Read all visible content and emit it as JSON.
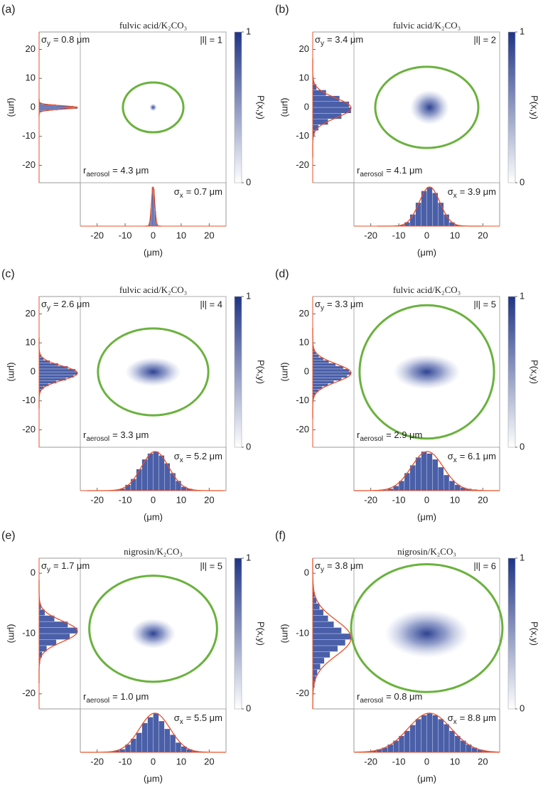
{
  "chart_data": [
    {
      "type": "heatmap",
      "panel_label": "(a)",
      "title": "fulvic acid/K₂CO₃",
      "sigma_y": {
        "symbol": "σ",
        "subscript": "y",
        "text": "= 0.8 μm"
      },
      "order": "|l| = 1",
      "r_aerosol": {
        "symbol": "r",
        "subscript": "aerosol",
        "text": "= 4.3 μm"
      },
      "sigma_x": {
        "symbol": "σ",
        "subscript": "x",
        "text": "= 0.7 μm"
      },
      "xlabel": "(μm)",
      "ylabel": "(μm)",
      "xlim": [
        -26,
        26
      ],
      "xticks": [
        -20,
        -10,
        0,
        10,
        20
      ],
      "ylim": [
        -26,
        26
      ],
      "yticks": [
        -20,
        -10,
        0,
        10,
        20
      ],
      "colorbar": {
        "label": "P(x,y)",
        "lim": [
          0,
          1
        ],
        "ticks": [
          0,
          1
        ]
      },
      "x_histogram": {
        "bins": [
          -2,
          -1.5,
          -1,
          -0.5,
          0,
          0.5,
          1,
          1.5,
          2
        ],
        "counts": [
          0.02,
          0.1,
          0.45,
          1,
          0.95,
          0.4,
          0.1,
          0.02
        ]
      },
      "y_histogram": {
        "bins": [
          -2,
          -1.5,
          -1,
          -0.5,
          0,
          0.5,
          1,
          1.5,
          2
        ],
        "counts": [
          0.02,
          0.12,
          0.5,
          1,
          0.9,
          0.45,
          0.1,
          0.02
        ]
      },
      "bar_color": "#4a5fa8",
      "fit_color": "#e8502a",
      "ellipse_color": "#6ab23e"
    },
    {
      "type": "heatmap",
      "panel_label": "(b)",
      "title": "fulvic acid/K₂CO₃",
      "sigma_y": {
        "symbol": "σ",
        "subscript": "y",
        "text": "= 3.4 μm"
      },
      "order": "|l| = 2",
      "r_aerosol": {
        "symbol": "r",
        "subscript": "aerosol",
        "text": "= 4.1 μm"
      },
      "sigma_x": {
        "symbol": "σ",
        "subscript": "x",
        "text": "= 3.9 μm"
      },
      "xlabel": "(μm)",
      "ylabel": "(μm)",
      "xlim": [
        -26,
        26
      ],
      "xticks": [
        -20,
        -10,
        0,
        10,
        20
      ],
      "ylim": [
        -26,
        26
      ],
      "yticks": [
        -20,
        -10,
        0,
        10,
        20
      ],
      "colorbar": {
        "label": "P(x,y)",
        "lim": [
          0,
          1
        ],
        "ticks": [
          0,
          1
        ]
      },
      "x_histogram": {
        "bins": [
          -10,
          -8,
          -6,
          -4,
          -2,
          0,
          2,
          4,
          6,
          8,
          10,
          12
        ],
        "counts": [
          0.03,
          0.1,
          0.3,
          0.6,
          0.9,
          1,
          0.85,
          0.6,
          0.3,
          0.1,
          0.03
        ]
      },
      "y_histogram": {
        "bins": [
          -10,
          -8,
          -6,
          -4,
          -2,
          0,
          2,
          4,
          6,
          8,
          10
        ],
        "counts": [
          0.05,
          0.15,
          0.4,
          0.75,
          1,
          0.95,
          0.7,
          0.35,
          0.1,
          0.03
        ]
      },
      "bar_color": "#4a5fa8",
      "fit_color": "#e8502a",
      "ellipse_color": "#6ab23e"
    },
    {
      "type": "heatmap",
      "panel_label": "(c)",
      "title": "fulvic acid/K₂CO₃",
      "sigma_y": {
        "symbol": "σ",
        "subscript": "y",
        "text": "= 2.6 μm"
      },
      "order": "|l| = 4",
      "r_aerosol": {
        "symbol": "r",
        "subscript": "aerosol",
        "text": "= 3.3 μm"
      },
      "sigma_x": {
        "symbol": "σ",
        "subscript": "x",
        "text": "= 5.2 μm"
      },
      "xlabel": "(μm)",
      "ylabel": "(μm)",
      "xlim": [
        -26,
        26
      ],
      "xticks": [
        -20,
        -10,
        0,
        10,
        20
      ],
      "ylim": [
        -26,
        26
      ],
      "yticks": [
        -20,
        -10,
        0,
        10,
        20
      ],
      "colorbar": {
        "label": "P(x,y)",
        "lim": [
          0,
          1
        ],
        "ticks": [
          0,
          1
        ]
      },
      "x_histogram": {
        "bins": [
          -14,
          -12,
          -10,
          -8,
          -6,
          -4,
          -2,
          0,
          2,
          4,
          6,
          8,
          10,
          12,
          14,
          16
        ],
        "counts": [
          0.02,
          0.05,
          0.15,
          0.3,
          0.55,
          0.8,
          0.95,
          1,
          0.9,
          0.7,
          0.45,
          0.25,
          0.1,
          0.05,
          0.02
        ]
      },
      "y_histogram": {
        "bins": [
          -8,
          -7,
          -6,
          -5,
          -4,
          -3,
          -2,
          -1,
          0,
          1,
          2,
          3,
          4,
          5,
          6,
          7,
          8
        ],
        "counts": [
          0.02,
          0.05,
          0.12,
          0.25,
          0.45,
          0.7,
          0.9,
          1,
          0.95,
          0.75,
          0.5,
          0.28,
          0.12,
          0.05,
          0.02,
          0.01
        ]
      },
      "bar_color": "#4a5fa8",
      "fit_color": "#e8502a",
      "ellipse_color": "#6ab23e"
    },
    {
      "type": "heatmap",
      "panel_label": "(d)",
      "title": "fulvic acid/K₂CO₃",
      "sigma_y": {
        "symbol": "σ",
        "subscript": "y",
        "text": "= 3.3 μm"
      },
      "order": "|l| = 5",
      "r_aerosol": {
        "symbol": "r",
        "subscript": "aerosol",
        "text": "= 2.9 μm"
      },
      "sigma_x": {
        "symbol": "σ",
        "subscript": "x",
        "text": "= 6.1 μm"
      },
      "xlabel": "(μm)",
      "ylabel": "(μm)",
      "xlim": [
        -26,
        26
      ],
      "xticks": [
        -20,
        -10,
        0,
        10,
        20
      ],
      "ylim": [
        -26,
        26
      ],
      "yticks": [
        -20,
        -10,
        0,
        10,
        20
      ],
      "colorbar": {
        "label": "P(x,y)",
        "lim": [
          0,
          1
        ],
        "ticks": [
          0,
          1
        ]
      },
      "x_histogram": {
        "bins": [
          -16,
          -14,
          -12,
          -10,
          -8,
          -6,
          -4,
          -2,
          0,
          2,
          4,
          6,
          8,
          10,
          12,
          14,
          16,
          18,
          20
        ],
        "counts": [
          0.02,
          0.05,
          0.12,
          0.25,
          0.45,
          0.65,
          0.85,
          1,
          0.95,
          0.8,
          0.6,
          0.4,
          0.25,
          0.15,
          0.08,
          0.05,
          0.03,
          0.02
        ]
      },
      "y_histogram": {
        "bins": [
          -10,
          -9,
          -8,
          -7,
          -6,
          -5,
          -4,
          -3,
          -2,
          -1,
          0,
          1,
          2,
          3,
          4,
          5,
          6,
          7,
          8,
          9,
          10
        ],
        "counts": [
          0.02,
          0.04,
          0.08,
          0.15,
          0.25,
          0.4,
          0.55,
          0.75,
          0.9,
          1,
          0.95,
          0.8,
          0.6,
          0.42,
          0.28,
          0.16,
          0.09,
          0.05,
          0.03,
          0.01
        ]
      },
      "bar_color": "#4a5fa8",
      "fit_color": "#e8502a",
      "ellipse_color": "#6ab23e"
    },
    {
      "type": "heatmap",
      "panel_label": "(e)",
      "title": "nigrosin/K₂CO₃",
      "sigma_y": {
        "symbol": "σ",
        "subscript": "y",
        "text": "= 1.7 μm"
      },
      "order": "|l| = 5",
      "r_aerosol": {
        "symbol": "r",
        "subscript": "aerosol",
        "text": "= 1.0 μm"
      },
      "sigma_x": {
        "symbol": "σ",
        "subscript": "x",
        "text": "= 5.5 μm"
      },
      "xlabel": "(μm)",
      "ylabel": "(μm)",
      "xlim": [
        -26,
        26
      ],
      "xticks": [
        -20,
        -10,
        0,
        10,
        20
      ],
      "ylim": [
        -22.5,
        2.5
      ],
      "yticks": [
        -20,
        -10,
        0
      ],
      "colorbar": {
        "label": "P(x,y)",
        "lim": [
          0,
          1
        ],
        "ticks": [
          0,
          1
        ]
      },
      "x_histogram": {
        "bins": [
          -16,
          -14,
          -12,
          -10,
          -8,
          -6,
          -4,
          -2,
          0,
          2,
          4,
          6,
          8,
          10,
          12,
          14,
          16,
          18
        ],
        "counts": [
          0.02,
          0.05,
          0.08,
          0.2,
          0.35,
          0.5,
          0.75,
          0.9,
          1,
          0.8,
          0.6,
          0.45,
          0.25,
          0.15,
          0.08,
          0.04,
          0.02
        ]
      },
      "y_histogram": {
        "bins": [
          -16,
          -15,
          -14,
          -13,
          -12,
          -11,
          -10,
          -9,
          -8,
          -7,
          -6,
          -5,
          -4
        ],
        "counts": [
          0.01,
          0.03,
          0.08,
          0.2,
          0.45,
          0.8,
          1,
          0.75,
          0.4,
          0.15,
          0.05,
          0.02
        ]
      },
      "bar_color": "#4a5fa8",
      "fit_color": "#e8502a",
      "ellipse_color": "#6ab23e"
    },
    {
      "type": "heatmap",
      "panel_label": "(f)",
      "title": "nigrosin/K₂CO₃",
      "sigma_y": {
        "symbol": "σ",
        "subscript": "y",
        "text": "= 3.8 μm"
      },
      "order": "|l| = 6",
      "r_aerosol": {
        "symbol": "r",
        "subscript": "aerosol",
        "text": "= 0.8 μm"
      },
      "sigma_x": {
        "symbol": "σ",
        "subscript": "x",
        "text": "= 8.8 μm"
      },
      "xlabel": "(μm)",
      "ylabel": "(μm)",
      "xlim": [
        -26,
        26
      ],
      "xticks": [
        -20,
        -10,
        0,
        10,
        20
      ],
      "ylim": [
        -22.5,
        2.5
      ],
      "yticks": [
        -20,
        -10,
        0
      ],
      "colorbar": {
        "label": "P(x,y)",
        "lim": [
          0,
          1
        ],
        "ticks": [
          0,
          1
        ]
      },
      "x_histogram": {
        "bins": [
          -22,
          -20,
          -18,
          -16,
          -14,
          -12,
          -10,
          -8,
          -6,
          -4,
          -2,
          0,
          2,
          4,
          6,
          8,
          10,
          12,
          14,
          16,
          18,
          20,
          22,
          24
        ],
        "counts": [
          0.02,
          0.04,
          0.08,
          0.12,
          0.2,
          0.3,
          0.42,
          0.55,
          0.7,
          0.85,
          0.95,
          1,
          0.95,
          0.85,
          0.72,
          0.55,
          0.42,
          0.3,
          0.2,
          0.12,
          0.07,
          0.04,
          0.02
        ]
      },
      "y_histogram": {
        "bins": [
          -20,
          -19,
          -18,
          -17,
          -16,
          -15,
          -14,
          -13,
          -12,
          -11,
          -10,
          -9,
          -8,
          -7,
          -6,
          -5,
          -4,
          -3,
          -2
        ],
        "counts": [
          0.02,
          0.05,
          0.08,
          0.12,
          0.2,
          0.3,
          0.45,
          0.65,
          0.85,
          1,
          0.75,
          0.55,
          0.4,
          0.28,
          0.18,
          0.1,
          0.05,
          0.02
        ]
      },
      "bar_color": "#4a5fa8",
      "fit_color": "#e8502a",
      "ellipse_color": "#6ab23e"
    }
  ]
}
